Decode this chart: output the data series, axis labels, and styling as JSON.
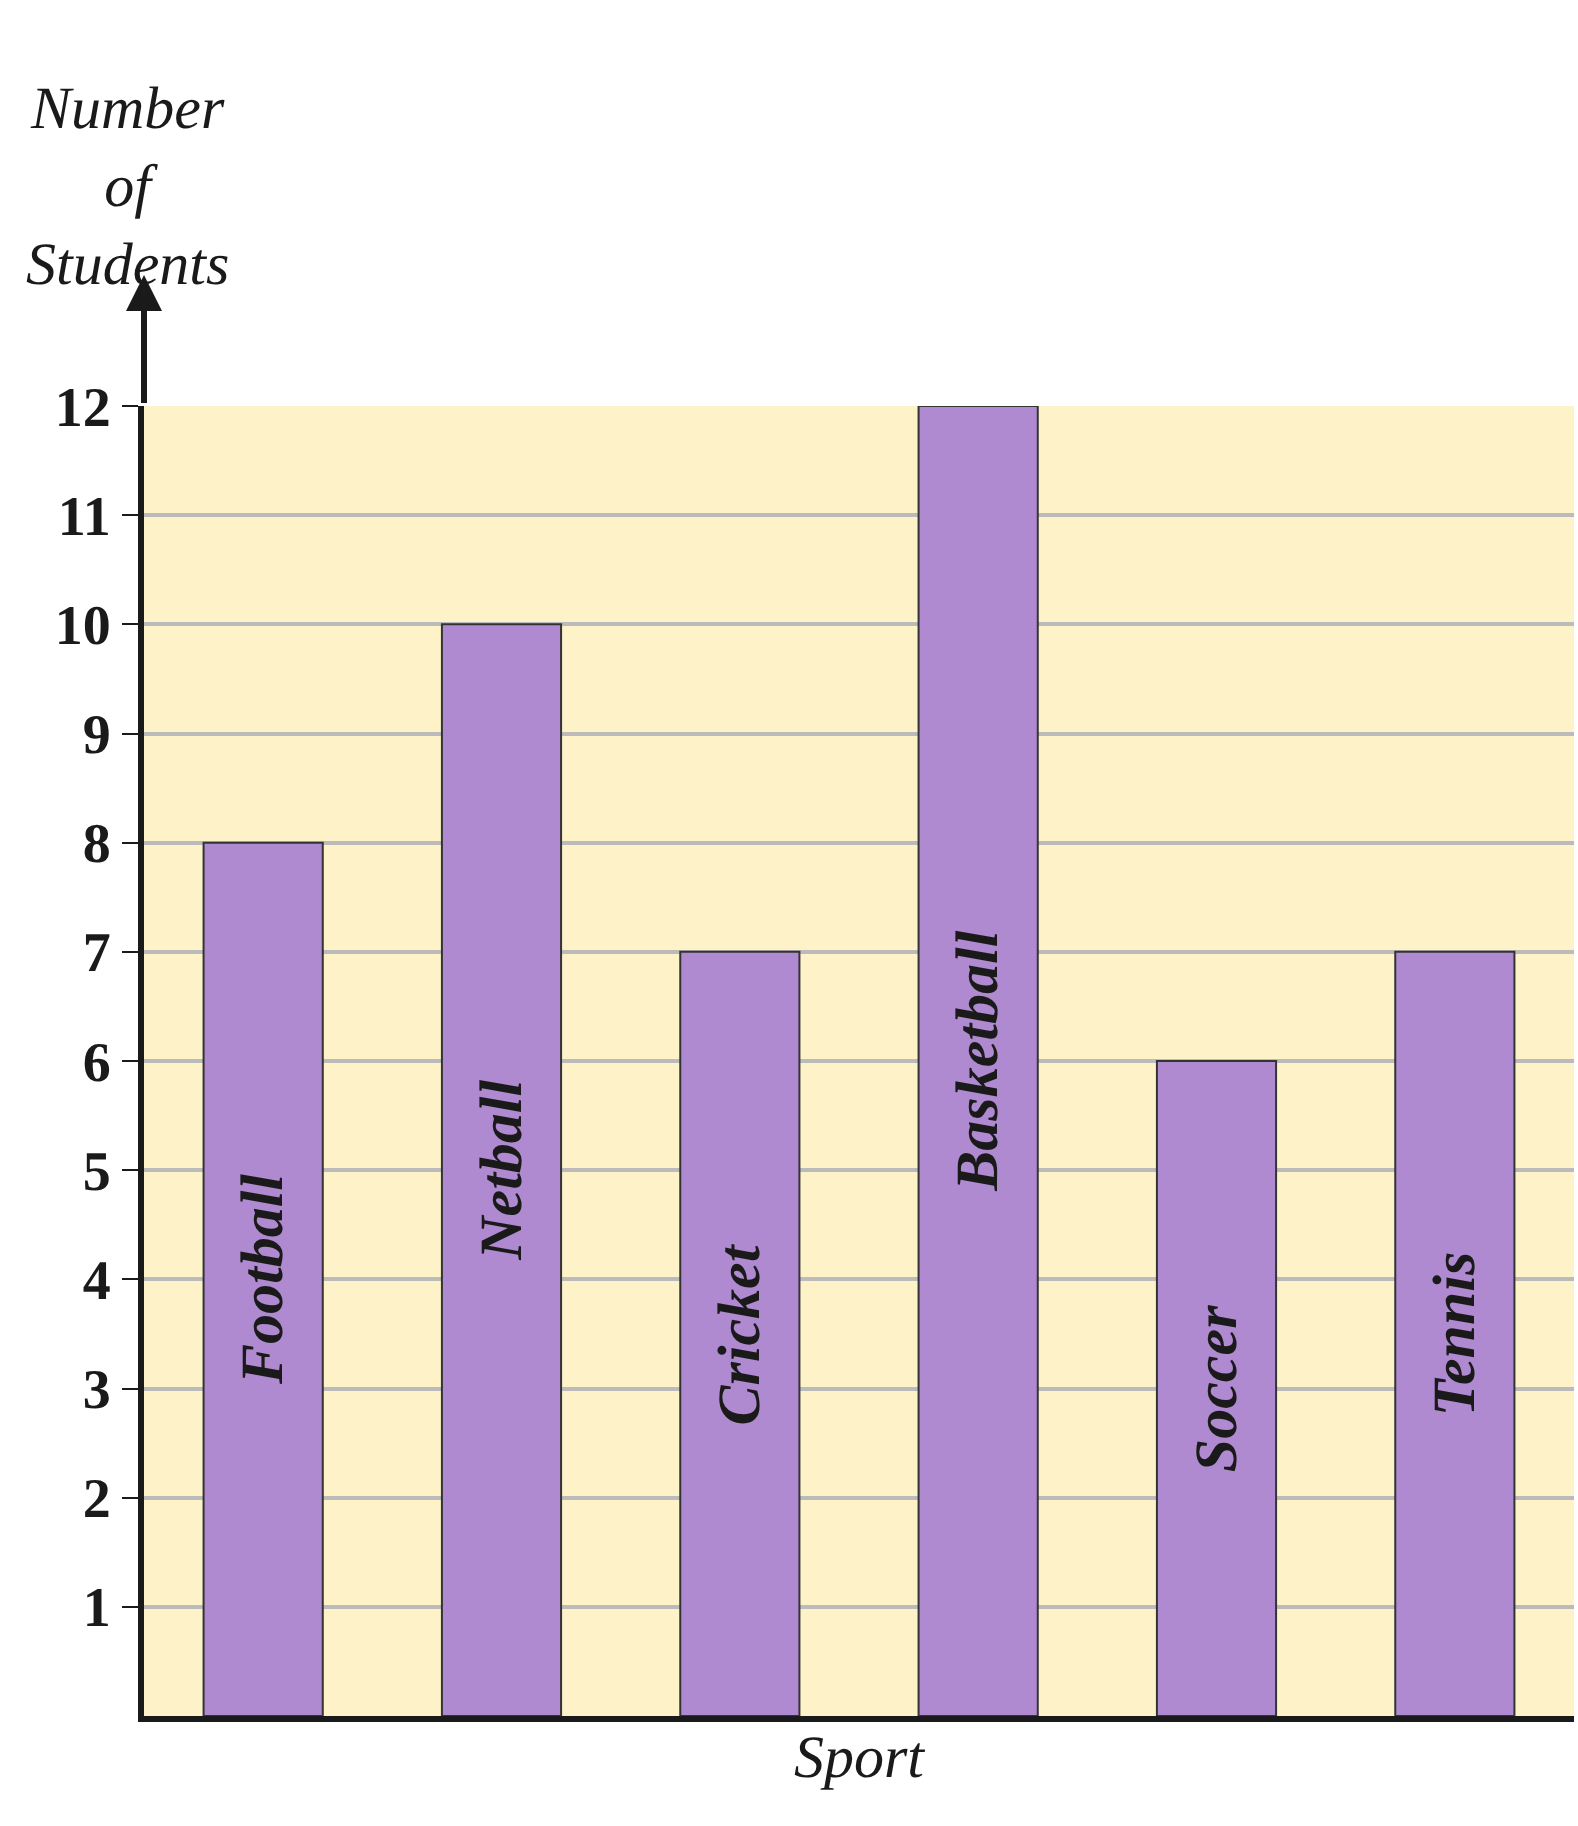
{
  "chart_data": {
    "type": "bar",
    "xlabel": "Sport",
    "ylabel": "Number of Students",
    "categories": [
      "Football",
      "Netball",
      "Cricket",
      "Basketball",
      "Soccer",
      "Tennis"
    ],
    "values": [
      8,
      10,
      7,
      12,
      6,
      7
    ],
    "color": "#b08ad0",
    "ylim": [
      0,
      12
    ],
    "yticks": [
      1,
      2,
      3,
      4,
      5,
      6,
      7,
      8,
      9,
      10,
      11,
      12
    ],
    "grid": "y",
    "tick_labels": "y",
    "legend": false
  }
}
